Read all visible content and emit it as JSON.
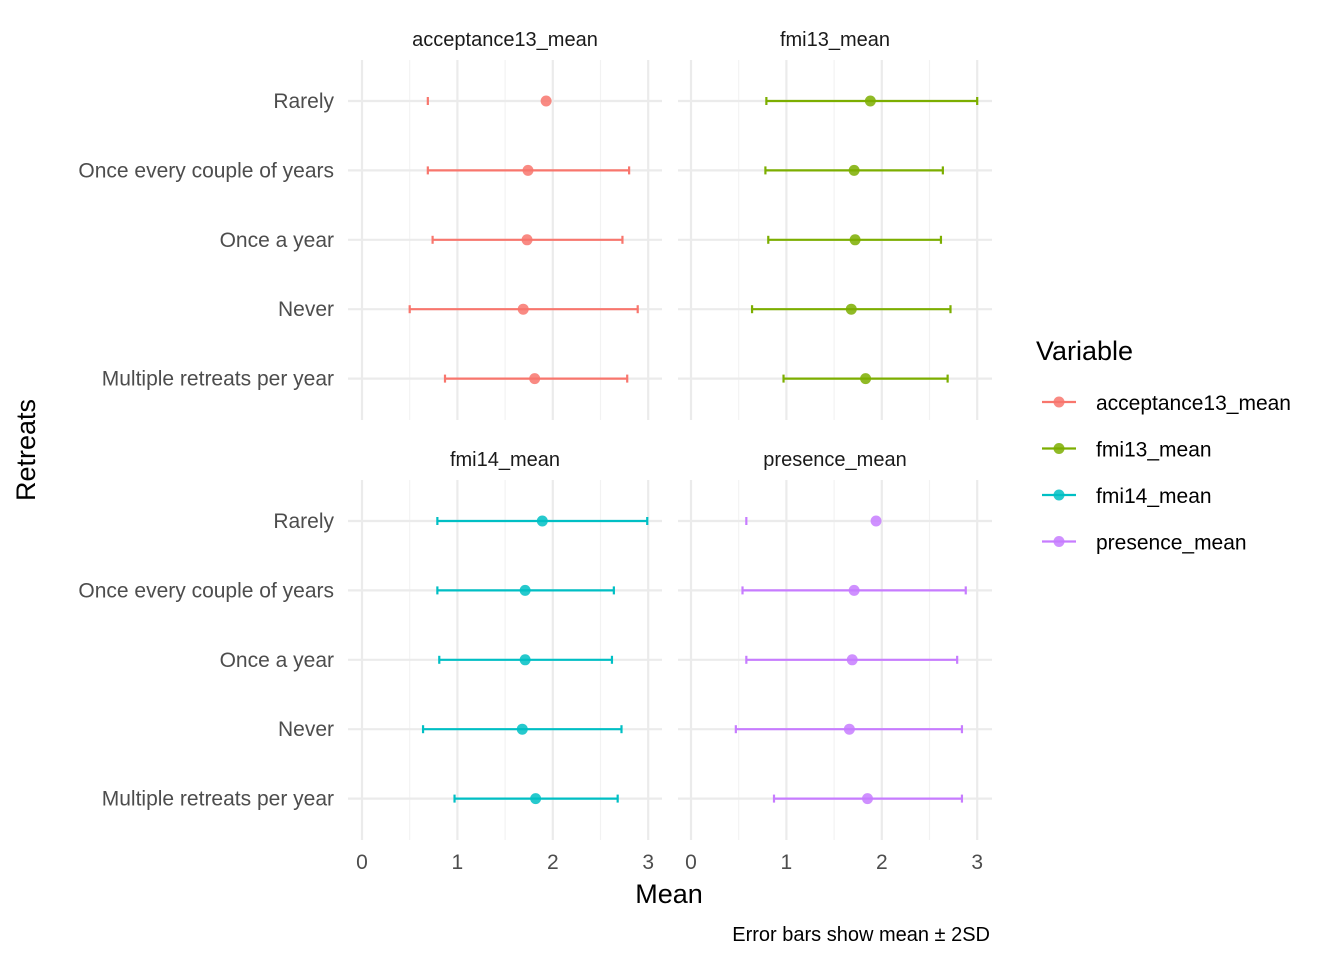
{
  "chart_data": {
    "type": "scatter",
    "subtype": "point-range faceted",
    "xlabel": "Mean",
    "ylabel": "Retreats",
    "caption": "Error bars show mean ± 2SD",
    "xlim": [
      0,
      3
    ],
    "x_ticks": [
      "0",
      "1",
      "2",
      "3"
    ],
    "grid": true,
    "legend": {
      "title": "Variable",
      "position": "right"
    },
    "categories": [
      "Rarely",
      "Once every couple of years",
      "Once a year",
      "Never",
      "Multiple retreats per year"
    ],
    "series": [
      {
        "name": "acceptance13_mean",
        "color": "#F8766D",
        "mean": [
          1.93,
          1.74,
          1.73,
          1.69,
          1.81
        ],
        "lower": [
          0.69,
          0.69,
          0.74,
          0.5,
          0.87
        ],
        "upper": [
          null,
          2.8,
          2.73,
          2.89,
          2.78
        ]
      },
      {
        "name": "fmi13_mean",
        "color": "#7CAE00",
        "mean": [
          1.88,
          1.71,
          1.72,
          1.68,
          1.83
        ],
        "lower": [
          0.79,
          0.78,
          0.81,
          0.64,
          0.97
        ],
        "upper": [
          3.0,
          2.64,
          2.62,
          2.72,
          2.69
        ]
      },
      {
        "name": "fmi14_mean",
        "color": "#00BFC4",
        "mean": [
          1.89,
          1.71,
          1.71,
          1.68,
          1.82
        ],
        "lower": [
          0.79,
          0.79,
          0.81,
          0.64,
          0.97
        ],
        "upper": [
          2.99,
          2.64,
          2.62,
          2.72,
          2.68
        ]
      },
      {
        "name": "presence_mean",
        "color": "#C77CFF",
        "mean": [
          1.94,
          1.71,
          1.69,
          1.66,
          1.85
        ],
        "lower": [
          0.58,
          0.54,
          0.58,
          0.47,
          0.87
        ],
        "upper": [
          null,
          2.88,
          2.79,
          2.84,
          2.84
        ]
      }
    ]
  }
}
